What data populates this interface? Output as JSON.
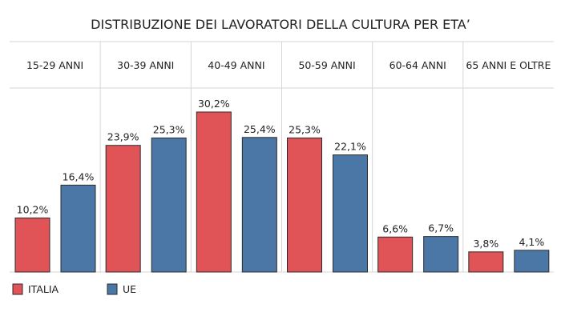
{
  "chart_data": {
    "type": "bar",
    "title": "DISTRIBUZIONE DEI LAVORATORI DELLA CULTURA PER ETA’",
    "xlabel": "",
    "ylabel": "",
    "categories": [
      "15-29 ANNI",
      "30-39 ANNI",
      "40-49 ANNI",
      "50-59 ANNI",
      "60-64 ANNI",
      "65 ANNI E OLTRE"
    ],
    "series": [
      {
        "name": "ITALIA",
        "color": "#e05357",
        "values": [
          10.2,
          23.9,
          30.2,
          25.3,
          6.6,
          3.8
        ],
        "labels": [
          "10,2%",
          "23,9%",
          "30,2%",
          "25,3%",
          "6,6%",
          "3,8%"
        ]
      },
      {
        "name": "UE",
        "color": "#4a77a6",
        "values": [
          16.4,
          25.3,
          25.4,
          22.1,
          6.7,
          4.1
        ],
        "labels": [
          "16,4%",
          "25,3%",
          "25,4%",
          "22,1%",
          "6,7%",
          "4,1%"
        ]
      }
    ],
    "ylim": [
      0,
      30.2
    ],
    "grid": false,
    "legend_position": "bottom-left"
  }
}
